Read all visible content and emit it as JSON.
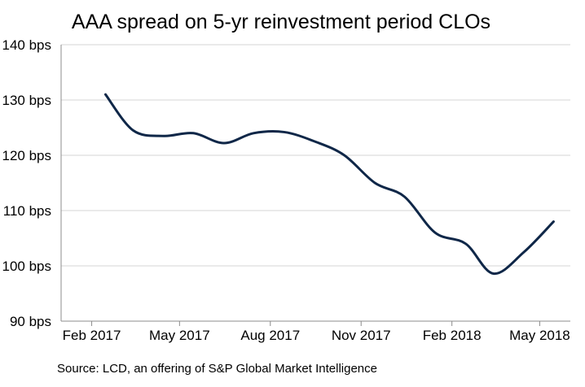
{
  "chart_data": {
    "type": "line",
    "title": "AAA spread on 5-yr reinvestment period CLOs",
    "xlabel": "",
    "ylabel": "",
    "source": "Source: LCD, an offering of S&P Global Market Intelligence",
    "x_ticks": [
      "Feb 2017",
      "May 2017",
      "Aug 2017",
      "Nov 2017",
      "Feb 2018",
      "May 2018"
    ],
    "y_ticks": [
      "90 bps",
      "100 bps",
      "110 bps",
      "120 bps",
      "130 bps",
      "140 bps"
    ],
    "ylim": [
      90,
      140
    ],
    "xlim": [
      "2017-01-01",
      "2018-06-01"
    ],
    "grid": true,
    "series": [
      {
        "color": "#0f2748",
        "x": [
          "2017-02-15",
          "2017-03-15",
          "2017-04-15",
          "2017-05-15",
          "2017-06-15",
          "2017-07-15",
          "2017-08-15",
          "2017-09-15",
          "2017-10-15",
          "2017-11-15",
          "2017-12-15",
          "2018-01-15",
          "2018-02-15",
          "2018-03-15",
          "2018-04-15",
          "2018-05-15"
        ],
        "y": [
          131,
          124.5,
          123.5,
          124,
          122.2,
          124,
          124.2,
          122.5,
          120,
          115,
          112.5,
          106,
          104,
          98.6,
          102.5,
          108
        ]
      }
    ]
  }
}
